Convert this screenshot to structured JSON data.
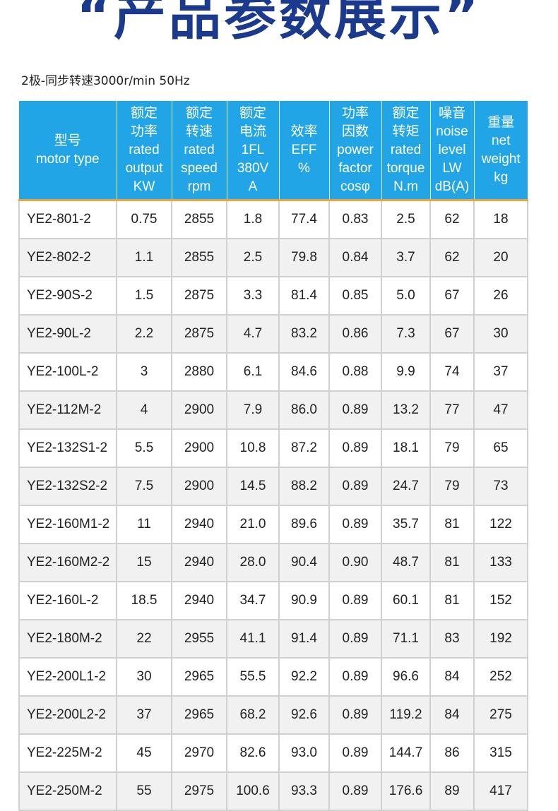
{
  "title": "“产品参数展示”",
  "subtitle": "2极-同步转速3000r/min 50Hz",
  "columns": [
    [
      "型号",
      "motor type"
    ],
    [
      "额定",
      "功率",
      "rated",
      "output",
      "KW"
    ],
    [
      "额定",
      "转速",
      "rated",
      "speed",
      "rpm"
    ],
    [
      "额定",
      "电流",
      "1FL",
      "380V",
      "A"
    ],
    [
      "效率",
      "EFF",
      "%"
    ],
    [
      "功率",
      "因数",
      "power",
      "factor",
      "cosφ"
    ],
    [
      "额定",
      "转矩",
      "rated",
      "torque",
      "N.m"
    ],
    [
      "噪音",
      "noise",
      "level",
      "LW",
      "dB(A)"
    ],
    [
      "重量",
      "net",
      "weight",
      "kg"
    ]
  ],
  "rows": [
    [
      "YE2-801-2",
      "0.75",
      "2855",
      "1.8",
      "77.4",
      "0.83",
      "2.5",
      "62",
      "18"
    ],
    [
      "YE2-802-2",
      "1.1",
      "2855",
      "2.5",
      "79.8",
      "0.84",
      "3.7",
      "62",
      "20"
    ],
    [
      "YE2-90S-2",
      "1.5",
      "2875",
      "3.3",
      "81.4",
      "0.85",
      "5.0",
      "67",
      "26"
    ],
    [
      "YE2-90L-2",
      "2.2",
      "2875",
      "4.7",
      "83.2",
      "0.86",
      "7.3",
      "67",
      "30"
    ],
    [
      "YE2-100L-2",
      "3",
      "2880",
      "6.1",
      "84.6",
      "0.88",
      "9.9",
      "74",
      "37"
    ],
    [
      "YE2-112M-2",
      "4",
      "2900",
      "7.9",
      "86.0",
      "0.89",
      "13.2",
      "77",
      "47"
    ],
    [
      "YE2-132S1-2",
      "5.5",
      "2900",
      "10.8",
      "87.2",
      "0.89",
      "18.1",
      "79",
      "65"
    ],
    [
      "YE2-132S2-2",
      "7.5",
      "2900",
      "14.5",
      "88.2",
      "0.89",
      "24.7",
      "79",
      "73"
    ],
    [
      "YE2-160M1-2",
      "11",
      "2940",
      "21.0",
      "89.6",
      "0.89",
      "35.7",
      "81",
      "122"
    ],
    [
      "YE2-160M2-2",
      "15",
      "2940",
      "28.0",
      "90.4",
      "0.90",
      "48.7",
      "81",
      "133"
    ],
    [
      "YE2-160L-2",
      "18.5",
      "2940",
      "34.7",
      "90.9",
      "0.89",
      "60.1",
      "81",
      "152"
    ],
    [
      "YE2-180M-2",
      "22",
      "2955",
      "41.1",
      "91.4",
      "0.89",
      "71.1",
      "83",
      "192"
    ],
    [
      "YE2-200L1-2",
      "30",
      "2965",
      "55.5",
      "92.2",
      "0.89",
      "96.6",
      "84",
      "252"
    ],
    [
      "YE2-200L2-2",
      "37",
      "2965",
      "68.2",
      "92.6",
      "0.89",
      "119.2",
      "84",
      "275"
    ],
    [
      "YE2-225M-2",
      "45",
      "2970",
      "82.6",
      "93.0",
      "0.89",
      "144.7",
      "86",
      "315"
    ],
    [
      "YE2-250M-2",
      "55",
      "2975",
      "100.6",
      "93.3",
      "0.89",
      "176.6",
      "89",
      "417"
    ]
  ],
  "colors": {
    "title": "#1b3a8e",
    "header_bg": "#21a5e6",
    "header_rule": "#e9a53b",
    "row_alt": "#f1f1f1"
  }
}
